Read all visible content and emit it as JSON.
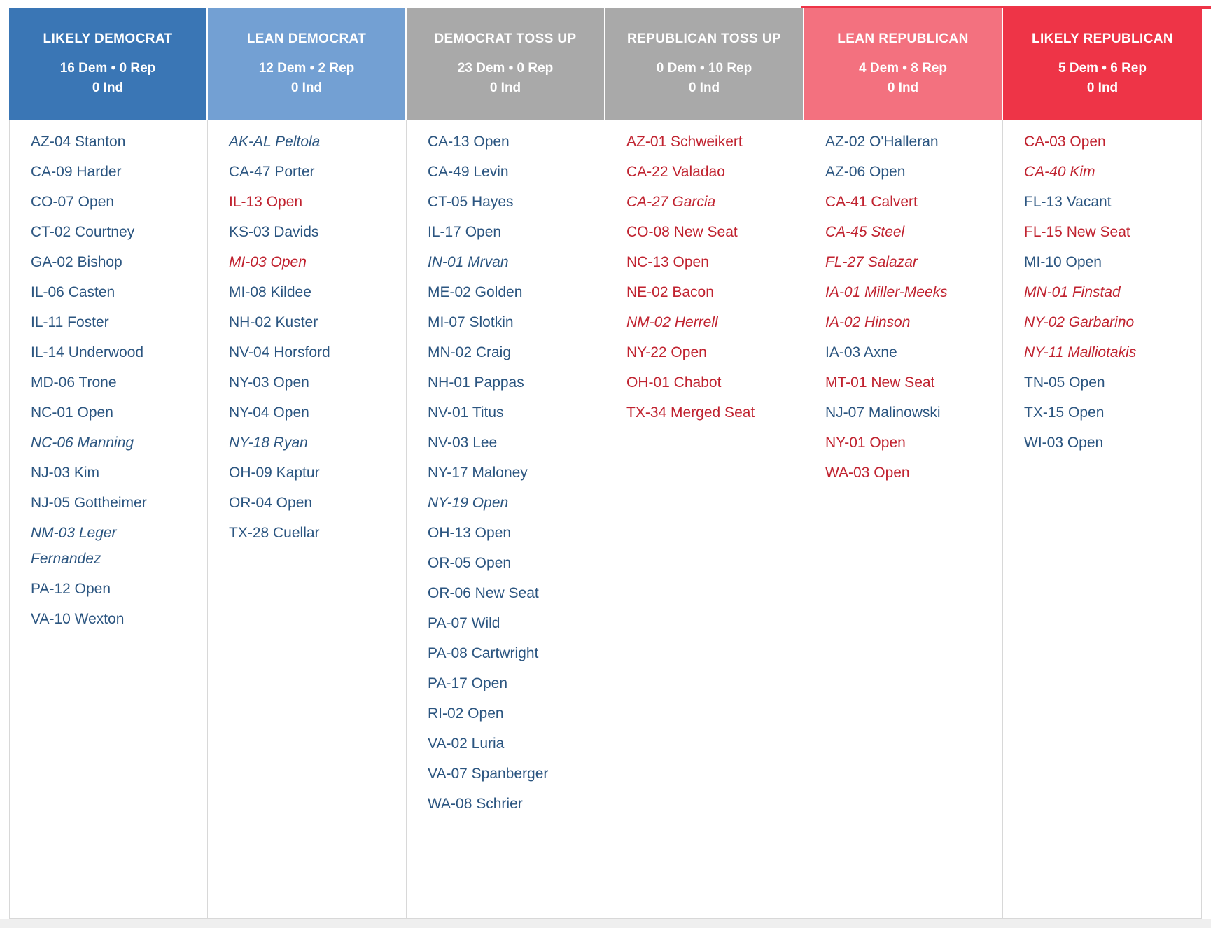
{
  "colors": {
    "dem_text": "#2b5580",
    "rep_text": "#c0222f",
    "grid_border": "#d8d8d8",
    "top_strip": "#ee3447",
    "below_strip": "#efefef"
  },
  "board": {
    "columns": [
      {
        "id": "likely-democrat",
        "title": "LIKELY DEMOCRAT",
        "counts_line1": "16 Dem • 0 Rep",
        "counts_line2": "0 Ind",
        "header_bg": "#3a76b5",
        "races": [
          {
            "label": "AZ-04 Stanton",
            "party": "dem",
            "italic": false
          },
          {
            "label": "CA-09 Harder",
            "party": "dem",
            "italic": false
          },
          {
            "label": "CO-07 Open",
            "party": "dem",
            "italic": false
          },
          {
            "label": "CT-02 Courtney",
            "party": "dem",
            "italic": false
          },
          {
            "label": "GA-02 Bishop",
            "party": "dem",
            "italic": false
          },
          {
            "label": "IL-06 Casten",
            "party": "dem",
            "italic": false
          },
          {
            "label": "IL-11 Foster",
            "party": "dem",
            "italic": false
          },
          {
            "label": "IL-14 Underwood",
            "party": "dem",
            "italic": false
          },
          {
            "label": "MD-06 Trone",
            "party": "dem",
            "italic": false
          },
          {
            "label": "NC-01 Open",
            "party": "dem",
            "italic": false
          },
          {
            "label": "NC-06 Manning",
            "party": "dem",
            "italic": true
          },
          {
            "label": "NJ-03 Kim",
            "party": "dem",
            "italic": false
          },
          {
            "label": "NJ-05 Gottheimer",
            "party": "dem",
            "italic": false
          },
          {
            "label": "NM-03 Leger Fernandez",
            "party": "dem",
            "italic": true,
            "wrap": true
          },
          {
            "label": "PA-12 Open",
            "party": "dem",
            "italic": false
          },
          {
            "label": "VA-10 Wexton",
            "party": "dem",
            "italic": false
          }
        ]
      },
      {
        "id": "lean-democrat",
        "title": "LEAN DEMOCRAT",
        "counts_line1": "12 Dem • 2 Rep",
        "counts_line2": "0 Ind",
        "header_bg": "#73a0d3",
        "races": [
          {
            "label": "AK-AL Peltola",
            "party": "dem",
            "italic": true
          },
          {
            "label": "CA-47 Porter",
            "party": "dem",
            "italic": false
          },
          {
            "label": "IL-13 Open",
            "party": "rep",
            "italic": false
          },
          {
            "label": "KS-03 Davids",
            "party": "dem",
            "italic": false
          },
          {
            "label": "MI-03 Open",
            "party": "rep",
            "italic": true
          },
          {
            "label": "MI-08 Kildee",
            "party": "dem",
            "italic": false
          },
          {
            "label": "NH-02 Kuster",
            "party": "dem",
            "italic": false
          },
          {
            "label": "NV-04 Horsford",
            "party": "dem",
            "italic": false
          },
          {
            "label": "NY-03 Open",
            "party": "dem",
            "italic": false
          },
          {
            "label": "NY-04 Open",
            "party": "dem",
            "italic": false
          },
          {
            "label": "NY-18 Ryan",
            "party": "dem",
            "italic": true
          },
          {
            "label": "OH-09 Kaptur",
            "party": "dem",
            "italic": false
          },
          {
            "label": "OR-04 Open",
            "party": "dem",
            "italic": false
          },
          {
            "label": "TX-28 Cuellar",
            "party": "dem",
            "italic": false
          }
        ]
      },
      {
        "id": "democrat-toss-up",
        "title": "DEMOCRAT TOSS UP",
        "counts_line1": "23 Dem • 0 Rep",
        "counts_line2": "0 Ind",
        "header_bg": "#a9a9a9",
        "races": [
          {
            "label": "CA-13 Open",
            "party": "dem",
            "italic": false
          },
          {
            "label": "CA-49 Levin",
            "party": "dem",
            "italic": false
          },
          {
            "label": "CT-05 Hayes",
            "party": "dem",
            "italic": false
          },
          {
            "label": "IL-17 Open",
            "party": "dem",
            "italic": false
          },
          {
            "label": "IN-01 Mrvan",
            "party": "dem",
            "italic": true
          },
          {
            "label": "ME-02 Golden",
            "party": "dem",
            "italic": false
          },
          {
            "label": "MI-07 Slotkin",
            "party": "dem",
            "italic": false
          },
          {
            "label": "MN-02 Craig",
            "party": "dem",
            "italic": false
          },
          {
            "label": "NH-01 Pappas",
            "party": "dem",
            "italic": false
          },
          {
            "label": "NV-01 Titus",
            "party": "dem",
            "italic": false
          },
          {
            "label": "NV-03 Lee",
            "party": "dem",
            "italic": false
          },
          {
            "label": "NY-17 Maloney",
            "party": "dem",
            "italic": false
          },
          {
            "label": "NY-19 Open",
            "party": "dem",
            "italic": true
          },
          {
            "label": "OH-13 Open",
            "party": "dem",
            "italic": false
          },
          {
            "label": "OR-05 Open",
            "party": "dem",
            "italic": false
          },
          {
            "label": "OR-06 New Seat",
            "party": "dem",
            "italic": false
          },
          {
            "label": "PA-07 Wild",
            "party": "dem",
            "italic": false
          },
          {
            "label": "PA-08 Cartwright",
            "party": "dem",
            "italic": false
          },
          {
            "label": "PA-17 Open",
            "party": "dem",
            "italic": false
          },
          {
            "label": "RI-02 Open",
            "party": "dem",
            "italic": false
          },
          {
            "label": "VA-02 Luria",
            "party": "dem",
            "italic": false
          },
          {
            "label": "VA-07 Spanberger",
            "party": "dem",
            "italic": false
          },
          {
            "label": "WA-08 Schrier",
            "party": "dem",
            "italic": false
          }
        ]
      },
      {
        "id": "republican-toss-up",
        "title": "REPUBLICAN TOSS UP",
        "counts_line1": "0 Dem • 10 Rep",
        "counts_line2": "0 Ind",
        "header_bg": "#a9a9a9",
        "races": [
          {
            "label": "AZ-01 Schweikert",
            "party": "rep",
            "italic": false
          },
          {
            "label": "CA-22 Valadao",
            "party": "rep",
            "italic": false
          },
          {
            "label": "CA-27 Garcia",
            "party": "rep",
            "italic": true
          },
          {
            "label": "CO-08 New Seat",
            "party": "rep",
            "italic": false
          },
          {
            "label": "NC-13 Open",
            "party": "rep",
            "italic": false
          },
          {
            "label": "NE-02 Bacon",
            "party": "rep",
            "italic": false
          },
          {
            "label": "NM-02 Herrell",
            "party": "rep",
            "italic": true
          },
          {
            "label": "NY-22 Open",
            "party": "rep",
            "italic": false
          },
          {
            "label": "OH-01 Chabot",
            "party": "rep",
            "italic": false
          },
          {
            "label": "TX-34 Merged Seat",
            "party": "rep",
            "italic": false
          }
        ]
      },
      {
        "id": "lean-republican",
        "title": "LEAN REPUBLICAN",
        "counts_line1": "4 Dem • 8 Rep",
        "counts_line2": "0 Ind",
        "header_bg": "#f3717f",
        "races": [
          {
            "label": "AZ-02 O'Halleran",
            "party": "dem",
            "italic": false
          },
          {
            "label": "AZ-06 Open",
            "party": "dem",
            "italic": false
          },
          {
            "label": "CA-41 Calvert",
            "party": "rep",
            "italic": false
          },
          {
            "label": "CA-45 Steel",
            "party": "rep",
            "italic": true
          },
          {
            "label": "FL-27 Salazar",
            "party": "rep",
            "italic": true
          },
          {
            "label": "IA-01 Miller-Meeks",
            "party": "rep",
            "italic": true
          },
          {
            "label": "IA-02 Hinson",
            "party": "rep",
            "italic": true
          },
          {
            "label": "IA-03 Axne",
            "party": "dem",
            "italic": false
          },
          {
            "label": "MT-01 New Seat",
            "party": "rep",
            "italic": false
          },
          {
            "label": "NJ-07 Malinowski",
            "party": "dem",
            "italic": false
          },
          {
            "label": "NY-01 Open",
            "party": "rep",
            "italic": false
          },
          {
            "label": "WA-03 Open",
            "party": "rep",
            "italic": false
          }
        ]
      },
      {
        "id": "likely-republican",
        "title": "LIKELY REPUBLICAN",
        "counts_line1": "5 Dem • 6 Rep",
        "counts_line2": "0 Ind",
        "header_bg": "#ee3447",
        "races": [
          {
            "label": "CA-03 Open",
            "party": "rep",
            "italic": false
          },
          {
            "label": "CA-40 Kim",
            "party": "rep",
            "italic": true
          },
          {
            "label": "FL-13 Vacant",
            "party": "dem",
            "italic": false
          },
          {
            "label": "FL-15 New Seat",
            "party": "rep",
            "italic": false
          },
          {
            "label": "MI-10 Open",
            "party": "dem",
            "italic": false
          },
          {
            "label": "MN-01 Finstad",
            "party": "rep",
            "italic": true
          },
          {
            "label": "NY-02 Garbarino",
            "party": "rep",
            "italic": true
          },
          {
            "label": "NY-11 Malliotakis",
            "party": "rep",
            "italic": true
          },
          {
            "label": "TN-05 Open",
            "party": "dem",
            "italic": false
          },
          {
            "label": "TX-15 Open",
            "party": "dem",
            "italic": false
          },
          {
            "label": "WI-03 Open",
            "party": "dem",
            "italic": false
          }
        ]
      }
    ]
  },
  "chart_data": {
    "type": "table",
    "title": "",
    "legend_position": "none",
    "columns": [
      {
        "header": "LIKELY DEMOCRAT",
        "dem": 16,
        "rep": 0,
        "ind": 0,
        "races": [
          "AZ-04 Stanton",
          "CA-09 Harder",
          "CO-07 Open",
          "CT-02 Courtney",
          "GA-02 Bishop",
          "IL-06 Casten",
          "IL-11 Foster",
          "IL-14 Underwood",
          "MD-06 Trone",
          "NC-01 Open",
          "NC-06 Manning",
          "NJ-03 Kim",
          "NJ-05 Gottheimer",
          "NM-03 Leger Fernandez",
          "PA-12 Open",
          "VA-10 Wexton"
        ]
      },
      {
        "header": "LEAN DEMOCRAT",
        "dem": 12,
        "rep": 2,
        "ind": 0,
        "races": [
          "AK-AL Peltola",
          "CA-47 Porter",
          "IL-13 Open",
          "KS-03 Davids",
          "MI-03 Open",
          "MI-08 Kildee",
          "NH-02 Kuster",
          "NV-04 Horsford",
          "NY-03 Open",
          "NY-04 Open",
          "NY-18 Ryan",
          "OH-09 Kaptur",
          "OR-04 Open",
          "TX-28 Cuellar"
        ]
      },
      {
        "header": "DEMOCRAT TOSS UP",
        "dem": 23,
        "rep": 0,
        "ind": 0,
        "races": [
          "CA-13 Open",
          "CA-49 Levin",
          "CT-05 Hayes",
          "IL-17 Open",
          "IN-01 Mrvan",
          "ME-02 Golden",
          "MI-07 Slotkin",
          "MN-02 Craig",
          "NH-01 Pappas",
          "NV-01 Titus",
          "NV-03 Lee",
          "NY-17 Maloney",
          "NY-19 Open",
          "OH-13 Open",
          "OR-05 Open",
          "OR-06 New Seat",
          "PA-07 Wild",
          "PA-08 Cartwright",
          "PA-17 Open",
          "RI-02 Open",
          "VA-02 Luria",
          "VA-07 Spanberger",
          "WA-08 Schrier"
        ]
      },
      {
        "header": "REPUBLICAN TOSS UP",
        "dem": 0,
        "rep": 10,
        "ind": 0,
        "races": [
          "AZ-01 Schweikert",
          "CA-22 Valadao",
          "CA-27 Garcia",
          "CO-08 New Seat",
          "NC-13 Open",
          "NE-02 Bacon",
          "NM-02 Herrell",
          "NY-22 Open",
          "OH-01 Chabot",
          "TX-34 Merged Seat"
        ]
      },
      {
        "header": "LEAN REPUBLICAN",
        "dem": 4,
        "rep": 8,
        "ind": 0,
        "races": [
          "AZ-02 O'Halleran",
          "AZ-06 Open",
          "CA-41 Calvert",
          "CA-45 Steel",
          "FL-27 Salazar",
          "IA-01 Miller-Meeks",
          "IA-02 Hinson",
          "IA-03 Axne",
          "MT-01 New Seat",
          "NJ-07 Malinowski",
          "NY-01 Open",
          "WA-03 Open"
        ]
      },
      {
        "header": "LIKELY REPUBLICAN",
        "dem": 5,
        "rep": 6,
        "ind": 0,
        "races": [
          "CA-03 Open",
          "CA-40 Kim",
          "FL-13 Vacant",
          "FL-15 New Seat",
          "MI-10 Open",
          "MN-01 Finstad",
          "NY-02 Garbarino",
          "NY-11 Malliotakis",
          "TN-05 Open",
          "TX-15 Open",
          "WI-03 Open"
        ]
      }
    ]
  }
}
